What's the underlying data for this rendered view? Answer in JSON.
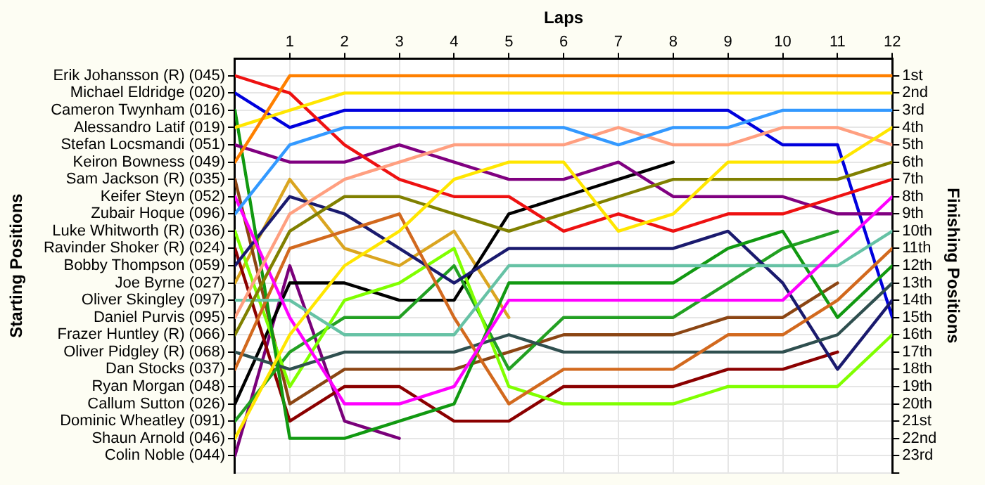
{
  "chart_data": {
    "type": "line",
    "xlabel": "Laps",
    "ylabel": "Finishing Positions",
    "x": [
      0,
      1,
      2,
      3,
      4,
      5,
      6,
      7,
      8,
      9,
      10,
      11,
      12
    ],
    "xlim": [
      0,
      12
    ],
    "xticks": [
      1,
      2,
      3,
      4,
      5,
      6,
      7,
      8,
      9,
      10,
      11,
      12
    ],
    "ylim": [
      24,
      0
    ],
    "yticks": [
      {
        "value": 1,
        "label": "1st"
      },
      {
        "value": 2,
        "label": "2nd"
      },
      {
        "value": 3,
        "label": "3rd"
      },
      {
        "value": 4,
        "label": "4th"
      },
      {
        "value": 5,
        "label": "5th"
      },
      {
        "value": 6,
        "label": "6th"
      },
      {
        "value": 7,
        "label": "7th"
      },
      {
        "value": 8,
        "label": "8th"
      },
      {
        "value": 9,
        "label": "9th"
      },
      {
        "value": 10,
        "label": "10th"
      },
      {
        "value": 11,
        "label": "11th"
      },
      {
        "value": 12,
        "label": "12th"
      },
      {
        "value": 13,
        "label": "13th"
      },
      {
        "value": 14,
        "label": "14th"
      },
      {
        "value": 15,
        "label": "15th"
      },
      {
        "value": 16,
        "label": "16th"
      },
      {
        "value": 17,
        "label": "17th"
      },
      {
        "value": 18,
        "label": "18th"
      },
      {
        "value": 19,
        "label": "19th"
      },
      {
        "value": 20,
        "label": "20th"
      },
      {
        "value": 21,
        "label": "21st"
      },
      {
        "value": 22,
        "label": "22nd"
      },
      {
        "value": 23,
        "label": "23rd"
      },
      {
        "value": 24,
        "label": null
      }
    ],
    "annotations": [
      "Starting Positions",
      "Erik Johansson (R) (045)",
      "Michael Eldridge (020)",
      "Cameron Twynham (016)",
      "Alessandro Latif (019)",
      "Stefan Locsmandi (051)",
      "Keiron Bowness (049)",
      "Sam Jackson (R) (035)",
      "Keifer Steyn (052)",
      "Zubair Hoque (096)",
      "Luke Whitworth (R) (036)",
      "Ravinder Shoker (R) (024)",
      "Bobby Thompson (059)",
      "Joe Byrne (027)",
      "Oliver Skingley (097)",
      "Daniel Purvis (095)",
      "Frazer Huntley (R) (066)",
      "Oliver Pidgley (R) (068)",
      "Dan Stocks (037)",
      "Ryan Morgan (048)",
      "Callum Sutton (026)",
      "Dominic Wheatley (091)",
      "Shaun Arnold (046)",
      "Colin Noble (044)"
    ],
    "grid": true,
    "marker": "none",
    "series": [
      {
        "color": "#ff8000",
        "values": [
          6,
          1,
          1,
          1,
          1,
          1,
          1,
          1,
          1,
          1,
          1,
          1,
          1
        ]
      },
      {
        "color": "#ffe600",
        "values": [
          4,
          3,
          2,
          2,
          2,
          2,
          2,
          2,
          2,
          2,
          2,
          2,
          2
        ]
      },
      {
        "color": "#3399ff",
        "values": [
          9,
          5,
          4,
          4,
          4,
          4,
          4,
          5,
          4,
          4,
          3,
          3,
          3
        ]
      },
      {
        "color": "#ffe600",
        "values": [
          22,
          16,
          12,
          10,
          7,
          6,
          6,
          10,
          9,
          6,
          6,
          6,
          4
        ]
      },
      {
        "color": "#ff9f80",
        "values": [
          15,
          9,
          7,
          6,
          5,
          5,
          5,
          4,
          5,
          5,
          4,
          4,
          5
        ]
      },
      {
        "color": "#808000",
        "values": [
          16,
          10,
          8,
          8,
          9,
          10,
          9,
          8,
          7,
          7,
          7,
          7,
          6
        ]
      },
      {
        "color": "#ee1111",
        "values": [
          1,
          2,
          5,
          7,
          8,
          8,
          10,
          9,
          10,
          9,
          9,
          8,
          7
        ]
      },
      {
        "color": "#ff00ff",
        "values": [
          8,
          15,
          20,
          20,
          19,
          14,
          14,
          14,
          14,
          14,
          14,
          11,
          8
        ]
      },
      {
        "color": "#800080",
        "values": [
          5,
          6,
          6,
          5,
          6,
          7,
          7,
          6,
          8,
          8,
          8,
          9,
          9
        ]
      },
      {
        "color": "#66c2a5",
        "values": [
          14,
          14,
          16,
          16,
          16,
          12,
          12,
          12,
          12,
          12,
          12,
          12,
          10
        ]
      },
      {
        "color": "#d2691e",
        "values": [
          18,
          11,
          10,
          9,
          15,
          20,
          18,
          18,
          18,
          16,
          16,
          14,
          11
        ]
      },
      {
        "color": "#119911",
        "values": [
          3,
          22,
          22,
          21,
          20,
          13,
          13,
          13,
          13,
          11,
          10,
          15,
          12
        ]
      },
      {
        "color": "#2f4f4f",
        "values": [
          17,
          18,
          17,
          17,
          17,
          16,
          17,
          17,
          17,
          17,
          17,
          16,
          13
        ]
      },
      {
        "color": "#1a1a6e",
        "values": [
          12,
          8,
          9,
          11,
          13,
          11,
          11,
          11,
          11,
          10,
          13,
          18,
          14
        ]
      },
      {
        "color": "#0000dd",
        "values": [
          2,
          4,
          3,
          3,
          3,
          3,
          3,
          3,
          3,
          3,
          5,
          5,
          15
        ]
      },
      {
        "color": "#80ff00",
        "values": [
          10,
          19,
          14,
          13,
          11,
          19,
          20,
          20,
          20,
          19,
          19,
          19,
          16
        ]
      },
      {
        "color": "#22a022",
        "values": [
          21,
          17,
          15,
          15,
          12,
          18,
          15,
          15,
          15,
          13,
          11,
          10,
          null
        ]
      },
      {
        "color": "#8b4513",
        "values": [
          7,
          20,
          18,
          18,
          18,
          17,
          16,
          16,
          16,
          15,
          15,
          13,
          null
        ]
      },
      {
        "color": "#8b0000",
        "values": [
          11,
          21,
          19,
          19,
          21,
          21,
          19,
          19,
          19,
          18,
          18,
          17,
          null
        ]
      },
      {
        "color": "#000000",
        "values": [
          20,
          13,
          13,
          14,
          14,
          9,
          8,
          7,
          6,
          null,
          null,
          null,
          null
        ]
      },
      {
        "color": "#daa520",
        "values": [
          13,
          7,
          11,
          12,
          10,
          15,
          null,
          null,
          null,
          null,
          null,
          null,
          null
        ]
      },
      {
        "color": "#7a007a",
        "values": [
          23,
          12,
          21,
          22,
          null,
          null,
          null,
          null,
          null,
          null,
          null,
          null,
          null
        ]
      }
    ]
  }
}
